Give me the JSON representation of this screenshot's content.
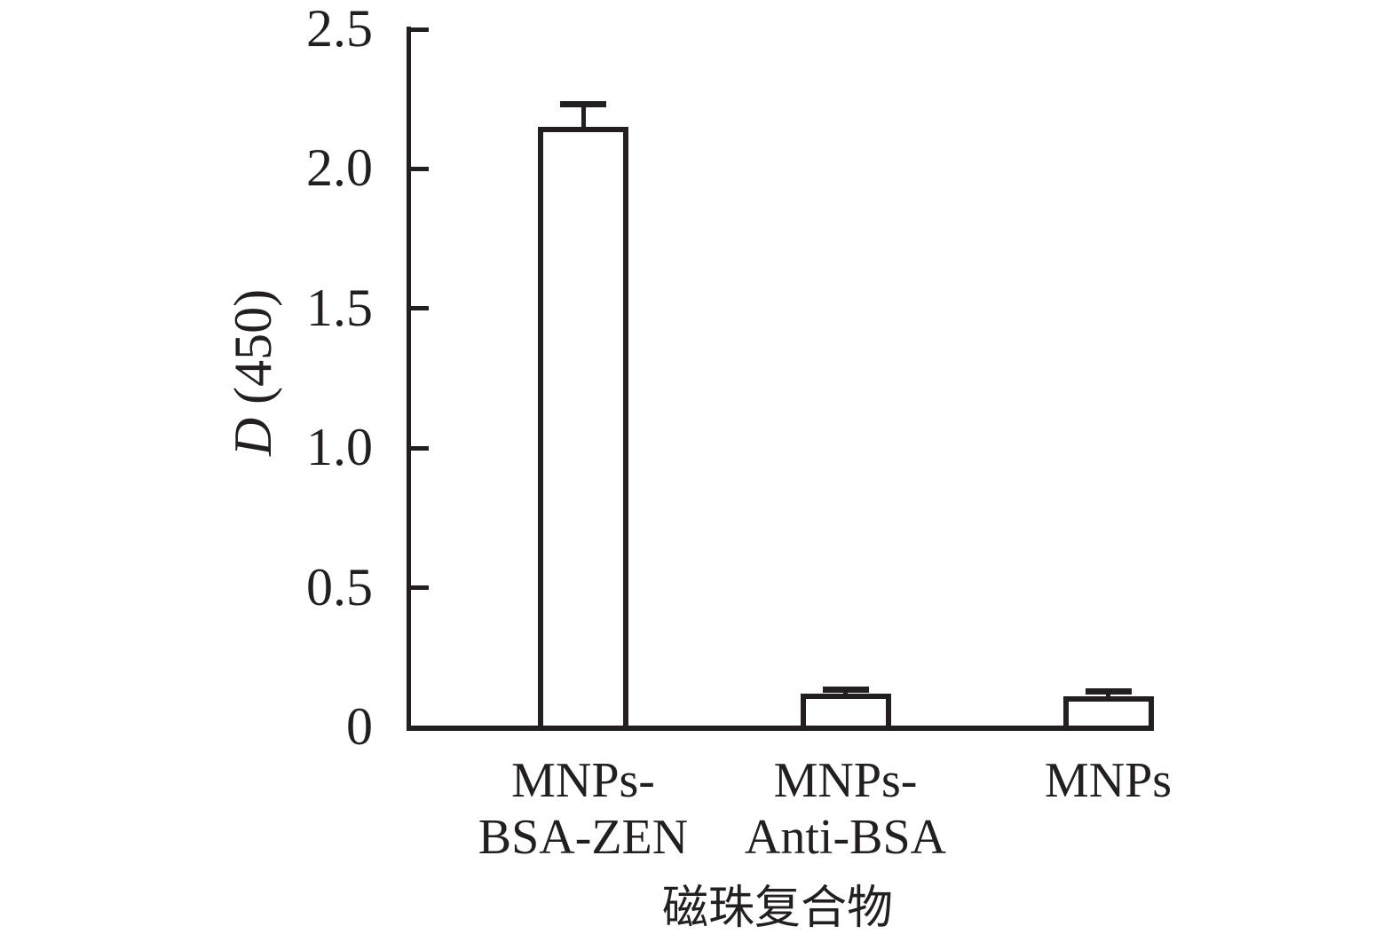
{
  "figure": {
    "background": "#ffffff",
    "ink_color": "#231f20"
  },
  "chart_data": {
    "type": "bar",
    "title": "",
    "xlabel": "磁珠复合物",
    "ylabel": "D (450)",
    "ylabel_italic": "D",
    "ylabel_rest": " (450)",
    "categories": [
      "MNPs-BSA-ZEN",
      "MNPs-Anti-BSA",
      "MNPs"
    ],
    "category_lines": [
      [
        "MNPs-",
        "BSA-ZEN"
      ],
      [
        "MNPs-",
        "Anti-BSA"
      ],
      [
        "MNPs"
      ]
    ],
    "values": [
      2.15,
      0.12,
      0.11
    ],
    "errors": [
      0.08,
      0.015,
      0.02
    ],
    "error_style": "upper-cap-only",
    "ylim": [
      0,
      2.5
    ],
    "yticks": [
      0,
      0.5,
      1.0,
      1.5,
      2.0,
      2.5
    ],
    "ytick_labels": [
      "0",
      "0.5",
      "1.0",
      "1.5",
      "2.0",
      "2.5"
    ],
    "bar_fill": "#ffffff",
    "bar_stroke": "#231f20",
    "grid": false,
    "legend": null
  }
}
